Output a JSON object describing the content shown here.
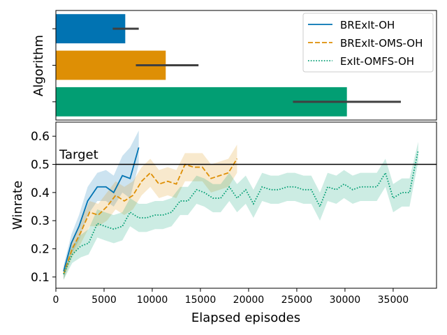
{
  "chart_data": [
    {
      "type": "bar",
      "orientation": "horizontal",
      "ylabel": "Algorithm",
      "xlim": [
        0,
        39500
      ],
      "categories": [
        "BRExIt-OH",
        "BRExIt-OMS-OH",
        "ExIt-OMFS-OH"
      ],
      "values": [
        7200,
        11400,
        30200
      ],
      "error_low": [
        5900,
        8300,
        24600
      ],
      "error_high": [
        8600,
        14800,
        35800
      ],
      "colors": [
        "#0173b2",
        "#de8f05",
        "#029e73"
      ]
    },
    {
      "type": "line",
      "xlabel": "Elapsed episodes",
      "ylabel": "Winrate",
      "xlim": [
        0,
        39500
      ],
      "ylim": [
        0.06,
        0.65
      ],
      "xticks": [
        "0",
        "5000",
        "10000",
        "15000",
        "20000",
        "25000",
        "30000",
        "35000"
      ],
      "yticks": [
        "0.1",
        "0.2",
        "0.3",
        "0.4",
        "0.5",
        "0.6"
      ],
      "target": {
        "value": 0.5,
        "label": "Target"
      },
      "legend": "top-right",
      "series": [
        {
          "name": "BRExIt-OH",
          "color": "#0173b2",
          "style": "solid",
          "points": [
            [
              800,
              0.12
            ],
            [
              1600,
              0.22
            ],
            [
              2400,
              0.28
            ],
            [
              3300,
              0.37
            ],
            [
              4300,
              0.42
            ],
            [
              5200,
              0.42
            ],
            [
              6000,
              0.4
            ],
            [
              6900,
              0.46
            ],
            [
              7700,
              0.45
            ],
            [
              8600,
              0.56
            ]
          ],
          "band": [
            [
              0.09,
              0.14
            ],
            [
              0.18,
              0.25
            ],
            [
              0.23,
              0.32
            ],
            [
              0.32,
              0.42
            ],
            [
              0.37,
              0.47
            ],
            [
              0.37,
              0.48
            ],
            [
              0.35,
              0.46
            ],
            [
              0.4,
              0.53
            ],
            [
              0.38,
              0.56
            ],
            [
              0.5,
              0.62
            ]
          ]
        },
        {
          "name": "BRExIt-OMS-OH",
          "color": "#de8f05",
          "style": "dashed",
          "points": [
            [
              800,
              0.11
            ],
            [
              1700,
              0.2
            ],
            [
              2600,
              0.26
            ],
            [
              3500,
              0.33
            ],
            [
              4400,
              0.32
            ],
            [
              5300,
              0.35
            ],
            [
              6200,
              0.39
            ],
            [
              7100,
              0.37
            ],
            [
              8000,
              0.39
            ],
            [
              8900,
              0.44
            ],
            [
              9800,
              0.47
            ],
            [
              10700,
              0.43
            ],
            [
              11600,
              0.44
            ],
            [
              12500,
              0.43
            ],
            [
              13400,
              0.5
            ],
            [
              14300,
              0.49
            ],
            [
              15200,
              0.49
            ],
            [
              16100,
              0.45
            ],
            [
              17000,
              0.46
            ],
            [
              17900,
              0.47
            ],
            [
              18800,
              0.52
            ]
          ],
          "band": [
            [
              0.09,
              0.13
            ],
            [
              0.17,
              0.23
            ],
            [
              0.22,
              0.3
            ],
            [
              0.28,
              0.37
            ],
            [
              0.28,
              0.36
            ],
            [
              0.3,
              0.4
            ],
            [
              0.34,
              0.44
            ],
            [
              0.32,
              0.42
            ],
            [
              0.34,
              0.44
            ],
            [
              0.39,
              0.49
            ],
            [
              0.42,
              0.52
            ],
            [
              0.38,
              0.48
            ],
            [
              0.39,
              0.49
            ],
            [
              0.38,
              0.48
            ],
            [
              0.44,
              0.54
            ],
            [
              0.44,
              0.54
            ],
            [
              0.44,
              0.54
            ],
            [
              0.4,
              0.5
            ],
            [
              0.41,
              0.51
            ],
            [
              0.42,
              0.52
            ],
            [
              0.47,
              0.57
            ]
          ]
        },
        {
          "name": "ExIt-OMFS-OH",
          "color": "#029e73",
          "style": "dotted",
          "points": [
            [
              800,
              0.11
            ],
            [
              1700,
              0.18
            ],
            [
              2600,
              0.21
            ],
            [
              3400,
              0.22
            ],
            [
              4300,
              0.29
            ],
            [
              5100,
              0.28
            ],
            [
              6000,
              0.27
            ],
            [
              6900,
              0.28
            ],
            [
              7700,
              0.33
            ],
            [
              8600,
              0.31
            ],
            [
              9400,
              0.31
            ],
            [
              10300,
              0.32
            ],
            [
              11100,
              0.32
            ],
            [
              12000,
              0.33
            ],
            [
              12900,
              0.37
            ],
            [
              13700,
              0.37
            ],
            [
              14600,
              0.41
            ],
            [
              15400,
              0.4
            ],
            [
              16300,
              0.38
            ],
            [
              17100,
              0.38
            ],
            [
              18000,
              0.42
            ],
            [
              18800,
              0.38
            ],
            [
              19700,
              0.41
            ],
            [
              20500,
              0.36
            ],
            [
              21400,
              0.42
            ],
            [
              22300,
              0.41
            ],
            [
              23100,
              0.41
            ],
            [
              24000,
              0.42
            ],
            [
              24800,
              0.42
            ],
            [
              25700,
              0.41
            ],
            [
              26500,
              0.41
            ],
            [
              27400,
              0.35
            ],
            [
              28200,
              0.42
            ],
            [
              29100,
              0.41
            ],
            [
              29900,
              0.43
            ],
            [
              30800,
              0.41
            ],
            [
              31600,
              0.42
            ],
            [
              32500,
              0.42
            ],
            [
              33300,
              0.42
            ],
            [
              34200,
              0.47
            ],
            [
              35000,
              0.38
            ],
            [
              35900,
              0.4
            ],
            [
              36700,
              0.4
            ],
            [
              37600,
              0.55
            ]
          ],
          "band": [
            [
              0.09,
              0.13
            ],
            [
              0.15,
              0.21
            ],
            [
              0.17,
              0.25
            ],
            [
              0.18,
              0.27
            ],
            [
              0.24,
              0.34
            ],
            [
              0.23,
              0.33
            ],
            [
              0.22,
              0.32
            ],
            [
              0.23,
              0.33
            ],
            [
              0.28,
              0.38
            ],
            [
              0.26,
              0.36
            ],
            [
              0.26,
              0.36
            ],
            [
              0.27,
              0.37
            ],
            [
              0.27,
              0.37
            ],
            [
              0.28,
              0.38
            ],
            [
              0.32,
              0.42
            ],
            [
              0.32,
              0.42
            ],
            [
              0.36,
              0.46
            ],
            [
              0.35,
              0.45
            ],
            [
              0.33,
              0.43
            ],
            [
              0.33,
              0.43
            ],
            [
              0.37,
              0.47
            ],
            [
              0.33,
              0.43
            ],
            [
              0.36,
              0.46
            ],
            [
              0.31,
              0.41
            ],
            [
              0.37,
              0.47
            ],
            [
              0.36,
              0.46
            ],
            [
              0.36,
              0.46
            ],
            [
              0.37,
              0.47
            ],
            [
              0.37,
              0.47
            ],
            [
              0.36,
              0.46
            ],
            [
              0.36,
              0.46
            ],
            [
              0.3,
              0.4
            ],
            [
              0.37,
              0.47
            ],
            [
              0.36,
              0.46
            ],
            [
              0.38,
              0.48
            ],
            [
              0.36,
              0.46
            ],
            [
              0.37,
              0.47
            ],
            [
              0.37,
              0.47
            ],
            [
              0.37,
              0.47
            ],
            [
              0.42,
              0.52
            ],
            [
              0.33,
              0.43
            ],
            [
              0.35,
              0.45
            ],
            [
              0.35,
              0.45
            ],
            [
              0.51,
              0.58
            ]
          ]
        }
      ]
    }
  ]
}
